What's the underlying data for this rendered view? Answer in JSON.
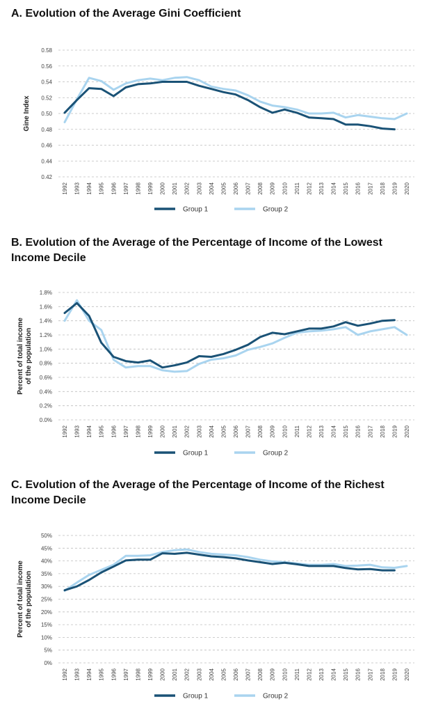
{
  "colors": {
    "group1": "#1a5276",
    "group2": "#a9d4ef",
    "grid": "#bdbdbd"
  },
  "chart_data": [
    {
      "type": "line",
      "title": "A. Evolution of the Average Gini Coefficient",
      "ylabel": [
        "Gine Index"
      ],
      "xlabel": "",
      "ylim": [
        0.42,
        0.58
      ],
      "yticks": [
        "0.58",
        "0.56",
        "0.54",
        "0.52",
        "0.50",
        "0.48",
        "0.46",
        "0.44",
        "0.42"
      ],
      "x": [
        "1992",
        "1993",
        "1994",
        "1995",
        "1996",
        "1997",
        "1998",
        "1999",
        "2000",
        "2001",
        "2002",
        "2003",
        "2004",
        "2005",
        "2006",
        "2007",
        "2008",
        "2009",
        "2010",
        "2011",
        "2012",
        "2013",
        "2014",
        "2015",
        "2016",
        "2017",
        "2018",
        "2019",
        "2020"
      ],
      "legend": [
        "Group 1",
        "Group 2"
      ],
      "series": [
        {
          "name": "Group 1",
          "values": [
            0.501,
            0.517,
            0.532,
            0.531,
            0.522,
            0.533,
            0.537,
            0.538,
            0.54,
            0.54,
            0.54,
            0.535,
            0.531,
            0.527,
            0.524,
            0.517,
            0.508,
            0.501,
            0.505,
            0.501,
            0.495,
            0.494,
            0.493,
            0.486,
            0.486,
            0.484,
            0.481,
            0.48,
            null
          ]
        },
        {
          "name": "Group 2",
          "values": [
            0.489,
            0.518,
            0.545,
            0.541,
            0.53,
            0.538,
            0.542,
            0.544,
            0.542,
            0.545,
            0.546,
            0.542,
            0.534,
            0.531,
            0.529,
            0.523,
            0.515,
            0.51,
            0.508,
            0.505,
            0.5,
            0.5,
            0.501,
            0.495,
            0.498,
            0.496,
            0.494,
            0.493,
            0.5
          ]
        }
      ]
    },
    {
      "type": "line",
      "title": "B. Evolution of the Average of the Percentage of Income of the Lowest Income Decile",
      "ylabel": [
        "Percent of total income",
        "of the population"
      ],
      "xlabel": "",
      "ylim": [
        0.0,
        1.8
      ],
      "yticks": [
        "1.8%",
        "1.6%",
        "1.4%",
        "1.2%",
        "1.0%",
        "0.8%",
        "0.6%",
        "0.4%",
        "0.2%",
        "0.0%"
      ],
      "x": [
        "1992",
        "1993",
        "1994",
        "1995",
        "1996",
        "1997",
        "1998",
        "1999",
        "2000",
        "2001",
        "2002",
        "2003",
        "2004",
        "2005",
        "2006",
        "2007",
        "2008",
        "2009",
        "2010",
        "2011",
        "2012",
        "2013",
        "2014",
        "2015",
        "2016",
        "2017",
        "2018",
        "2019",
        "2020"
      ],
      "legend": [
        "Group 1",
        "Group 2"
      ],
      "series": [
        {
          "name": "Group 1",
          "values": [
            1.51,
            1.65,
            1.47,
            1.09,
            0.89,
            0.83,
            0.81,
            0.84,
            0.74,
            0.77,
            0.81,
            0.9,
            0.89,
            0.93,
            0.99,
            1.06,
            1.17,
            1.23,
            1.21,
            1.25,
            1.29,
            1.29,
            1.32,
            1.38,
            1.33,
            1.36,
            1.4,
            1.41,
            null
          ]
        },
        {
          "name": "Group 2",
          "values": [
            1.4,
            1.69,
            1.4,
            1.27,
            0.85,
            0.74,
            0.76,
            0.76,
            0.7,
            0.68,
            0.69,
            0.79,
            0.85,
            0.87,
            0.91,
            0.99,
            1.03,
            1.08,
            1.16,
            1.23,
            1.25,
            1.26,
            1.28,
            1.31,
            1.2,
            1.25,
            1.28,
            1.31,
            1.2
          ]
        }
      ]
    },
    {
      "type": "line",
      "title": "C. Evolution of the Average of the Percentage of Income of the Richest Income Decile",
      "ylabel": [
        "Percent of total income",
        "of the population"
      ],
      "xlabel": "",
      "ylim": [
        0,
        50
      ],
      "yticks": [
        "50%",
        "45%",
        "40%",
        "35%",
        "30%",
        "25%",
        "20%",
        "15%",
        "10%",
        "5%",
        "0%"
      ],
      "x": [
        "1992",
        "1993",
        "1994",
        "1995",
        "1996",
        "1997",
        "1998",
        "1999",
        "2000",
        "2001",
        "2002",
        "2003",
        "2004",
        "2005",
        "2006",
        "2007",
        "2008",
        "2009",
        "2010",
        "2011",
        "2012",
        "2013",
        "2014",
        "2015",
        "2016",
        "2017",
        "2018",
        "2019",
        "2020"
      ],
      "legend": [
        "Group 1",
        "Group 2"
      ],
      "series": [
        {
          "name": "Group 1",
          "values": [
            28.5,
            30.0,
            32.5,
            35.5,
            37.8,
            40.2,
            40.5,
            40.5,
            43.0,
            42.8,
            43.2,
            42.5,
            41.8,
            41.5,
            41.0,
            40.2,
            39.5,
            38.8,
            39.3,
            38.7,
            38.0,
            38.0,
            38.0,
            37.2,
            36.7,
            36.8,
            36.3,
            36.3,
            null
          ]
        },
        {
          "name": "Group 2",
          "values": [
            28.3,
            31.5,
            34.5,
            36.5,
            38.5,
            42.0,
            42.0,
            42.2,
            43.5,
            44.2,
            44.5,
            43.5,
            42.8,
            42.5,
            42.2,
            41.5,
            40.5,
            39.8,
            39.5,
            39.0,
            38.5,
            38.5,
            38.8,
            38.0,
            38.2,
            38.5,
            37.5,
            37.3,
            38.0
          ]
        }
      ]
    }
  ]
}
